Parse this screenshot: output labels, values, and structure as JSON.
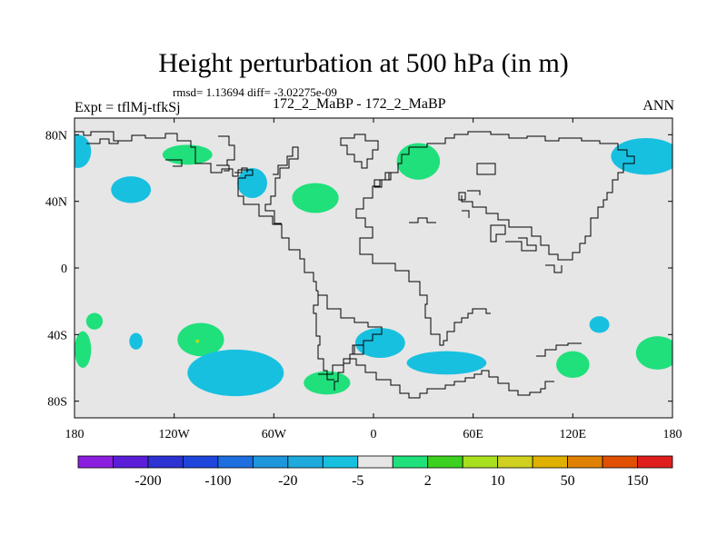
{
  "title": "Height perturbation at 500 hPa (in m)",
  "stats_line": "rmsd= 1.13694 diff= -3.02275e-09",
  "left_label": "Expt = tflMj-tfkSj",
  "center_label": "172_2_MaBP - 172_2_MaBP",
  "right_label": "ANN",
  "chart_data": {
    "type": "contour_map",
    "field": "geopotential height perturbation at 500 hPa",
    "units": "m",
    "x_range": [
      -180,
      180
    ],
    "y_range": [
      -90,
      90
    ],
    "x_ticks": [
      {
        "value": -180,
        "label": "180"
      },
      {
        "value": -120,
        "label": "120W"
      },
      {
        "value": -60,
        "label": "60W"
      },
      {
        "value": 0,
        "label": "0"
      },
      {
        "value": 60,
        "label": "60E"
      },
      {
        "value": 120,
        "label": "120E"
      },
      {
        "value": 180,
        "label": "180"
      }
    ],
    "y_ticks": [
      {
        "value": 80,
        "label": "80N"
      },
      {
        "value": 40,
        "label": "40N"
      },
      {
        "value": 0,
        "label": "0"
      },
      {
        "value": -40,
        "label": "40S"
      },
      {
        "value": -80,
        "label": "80S"
      }
    ],
    "colorbar": {
      "colors": [
        "#8c1ee0",
        "#5a1ed8",
        "#2d32d2",
        "#1e46dc",
        "#1e6ee0",
        "#1e96dc",
        "#1eaadc",
        "#18c0e0",
        "#e6e6e6",
        "#20e07c",
        "#3cd020",
        "#a8e020",
        "#d0d020",
        "#e0b000",
        "#e08000",
        "#e05000",
        "#e01e1e"
      ],
      "labels": [
        {
          "index": 2,
          "text": "-200"
        },
        {
          "index": 4,
          "text": "-100"
        },
        {
          "index": 6,
          "text": "-20"
        },
        {
          "index": 8,
          "text": "-5"
        },
        {
          "index": 10,
          "text": "2"
        },
        {
          "index": 12,
          "text": "10"
        },
        {
          "index": 14,
          "text": "50"
        },
        {
          "index": 16,
          "text": "150"
        }
      ]
    },
    "blobs": [
      {
        "lon": -178,
        "lat": 70,
        "rlon": 8,
        "rlat": 10,
        "color": "#18c0e0"
      },
      {
        "lon": -146,
        "lat": 47,
        "rlon": 12,
        "rlat": 8,
        "color": "#18c0e0"
      },
      {
        "lon": -112,
        "lat": 68,
        "rlon": 15,
        "rlat": 6,
        "color": "#20e07c"
      },
      {
        "lon": -73,
        "lat": 51,
        "rlon": 9,
        "rlat": 9,
        "color": "#18c0e0"
      },
      {
        "lon": -35,
        "lat": 42,
        "rlon": 14,
        "rlat": 9,
        "color": "#20e07c"
      },
      {
        "lon": 27,
        "lat": 64,
        "rlon": 13,
        "rlat": 11,
        "color": "#20e07c"
      },
      {
        "lon": 164,
        "lat": 67,
        "rlon": 21,
        "rlat": 11,
        "color": "#18c0e0"
      },
      {
        "lon": -168,
        "lat": -32,
        "rlon": 5,
        "rlat": 5,
        "color": "#20e07c"
      },
      {
        "lon": -143,
        "lat": -44,
        "rlon": 4,
        "rlat": 5,
        "color": "#18c0e0"
      },
      {
        "lon": -175,
        "lat": -49,
        "rlon": 5,
        "rlat": 11,
        "color": "#20e07c"
      },
      {
        "lon": -104,
        "lat": -43,
        "rlon": 14,
        "rlat": 10,
        "color": "#20e07c"
      },
      {
        "lon": -83,
        "lat": -63,
        "rlon": 29,
        "rlat": 14,
        "color": "#18c0e0"
      },
      {
        "lon": -28,
        "lat": -69,
        "rlon": 14,
        "rlat": 7,
        "color": "#20e07c"
      },
      {
        "lon": 4,
        "lat": -45,
        "rlon": 15,
        "rlat": 9,
        "color": "#18c0e0"
      },
      {
        "lon": 44,
        "lat": -57,
        "rlon": 24,
        "rlat": 7,
        "color": "#18c0e0"
      },
      {
        "lon": 120,
        "lat": -58,
        "rlon": 10,
        "rlat": 8,
        "color": "#20e07c"
      },
      {
        "lon": 136,
        "lat": -34,
        "rlon": 6,
        "rlat": 5,
        "color": "#18c0e0"
      },
      {
        "lon": 171,
        "lat": -51,
        "rlon": 13,
        "rlat": 10,
        "color": "#20e07c"
      }
    ],
    "markers": [
      {
        "lon": -106,
        "lat": -44,
        "color": "#a8e020"
      }
    ]
  }
}
